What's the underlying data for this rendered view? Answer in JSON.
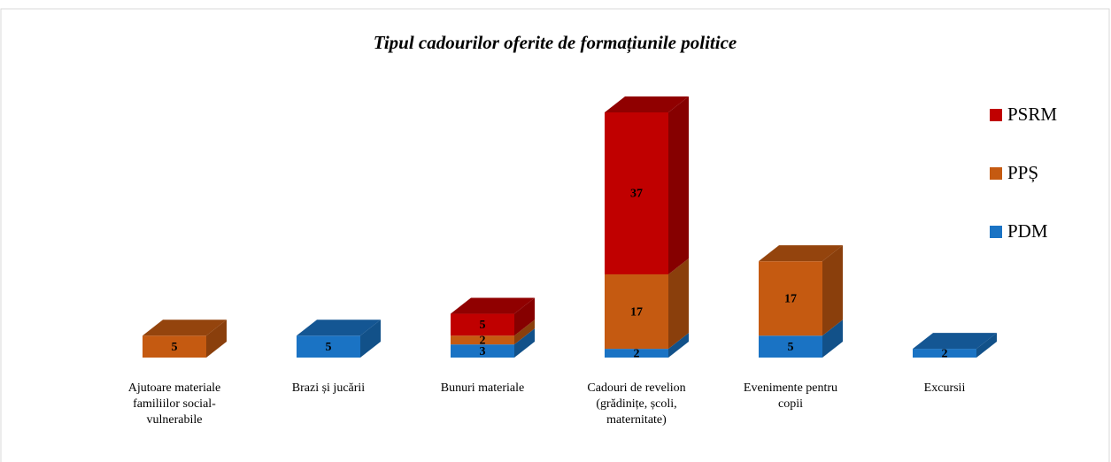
{
  "chart_data": {
    "type": "bar3d_stacked",
    "title": "Tipul cadourilor oferite de formațiunile politice",
    "categories": [
      "Ajutoare materiale familiilor social-vulnerabile",
      "Brazi și jucării",
      "Bunuri materiale",
      "Cadouri de revelion (grădinițe, școli, maternitate)",
      "Evenimente pentru copii",
      "Excursii"
    ],
    "series": [
      {
        "name": "PDM",
        "color": "#1a73c4",
        "values": [
          null,
          5,
          3,
          2,
          5,
          2
        ]
      },
      {
        "name": "PPȘ",
        "color": "#c55a11",
        "values": [
          5,
          null,
          2,
          17,
          17,
          null
        ]
      },
      {
        "name": "PSRM",
        "color": "#c00000",
        "values": [
          null,
          null,
          5,
          37,
          null,
          null
        ]
      }
    ],
    "legend": "right"
  }
}
